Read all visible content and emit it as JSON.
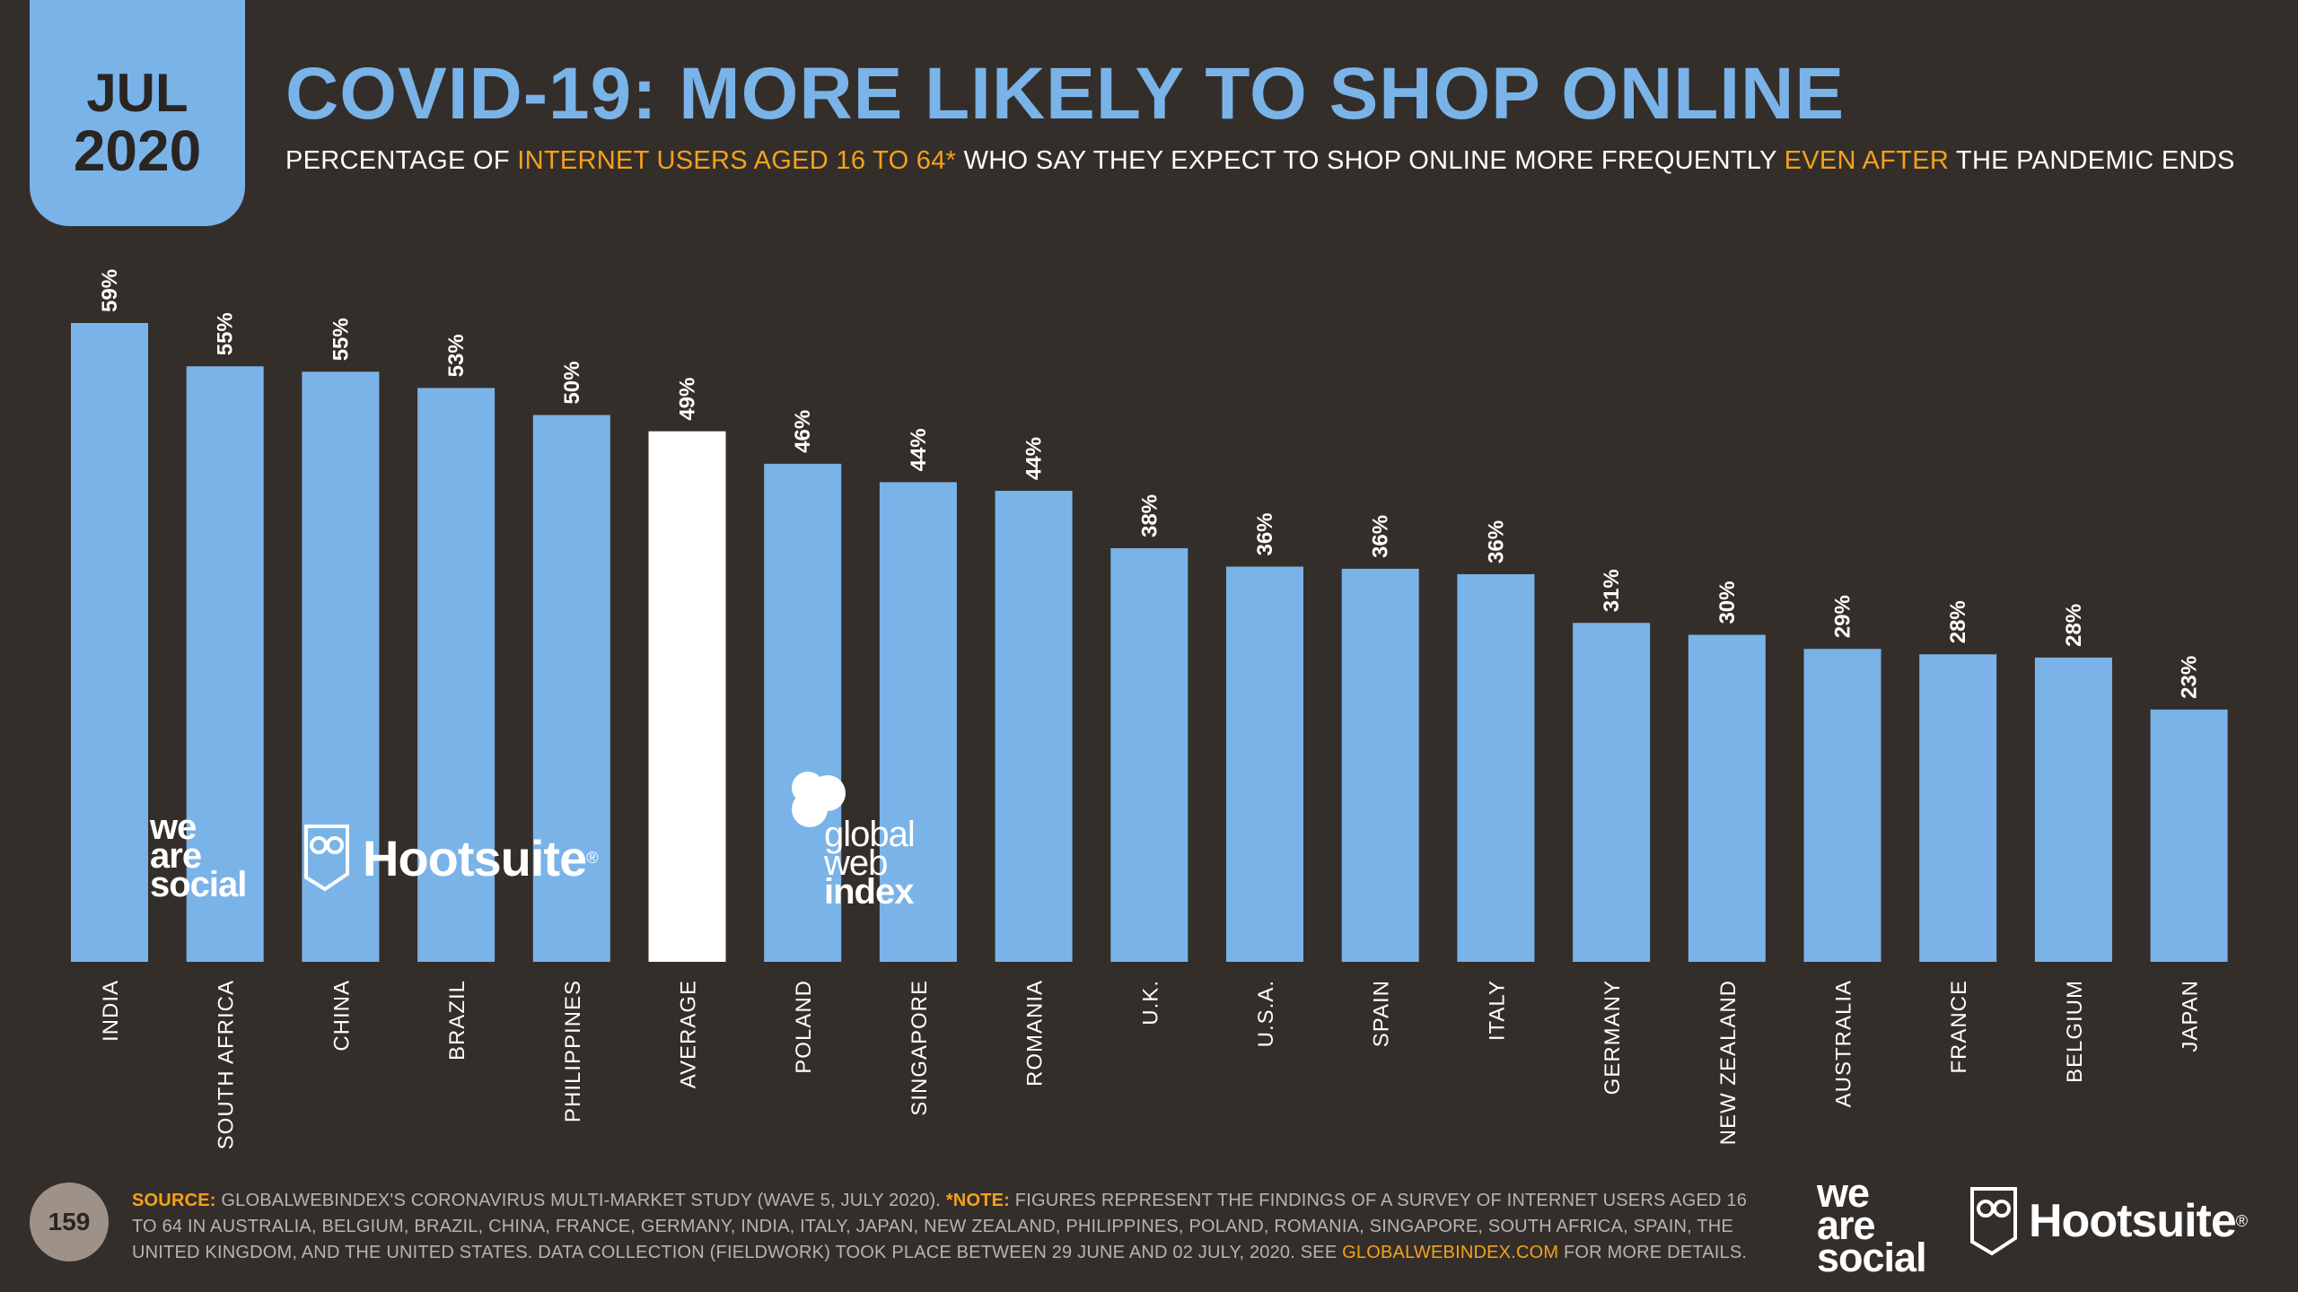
{
  "badge": {
    "month": "JUL",
    "year": "2020"
  },
  "title": "COVID-19: MORE LIKELY TO SHOP ONLINE",
  "subtitle": {
    "part1": "PERCENTAGE OF ",
    "highlight1": "INTERNET USERS AGED 16 TO 64*",
    "part2": " WHO SAY THEY EXPECT TO SHOP ONLINE MORE FREQUENTLY ",
    "highlight2": "EVEN AFTER",
    "part3": " THE PANDEMIC ENDS"
  },
  "colors": {
    "background": "#342e2a",
    "bar": "#7ab3e8",
    "highlight_bar": "#ffffff",
    "accent": "#f5a11c"
  },
  "chart_data": {
    "type": "bar",
    "categories": [
      "INDIA",
      "SOUTH AFRICA",
      "CHINA",
      "BRAZIL",
      "PHILIPPINES",
      "AVERAGE",
      "POLAND",
      "SINGAPORE",
      "ROMANIA",
      "U.K.",
      "U.S.A.",
      "SPAIN",
      "ITALY",
      "GERMANY",
      "NEW ZEALAND",
      "AUSTRALIA",
      "FRANCE",
      "BELGIUM",
      "JAPAN"
    ],
    "values": [
      59.0,
      55.0,
      54.5,
      53.0,
      50.5,
      49.0,
      46.0,
      44.3,
      43.5,
      38.2,
      36.5,
      36.3,
      35.8,
      31.3,
      30.2,
      28.9,
      28.4,
      28.1,
      23.3
    ],
    "labels": [
      "59%",
      "55%",
      "55%",
      "53%",
      "50%",
      "49%",
      "46%",
      "44%",
      "44%",
      "38%",
      "36%",
      "36%",
      "36%",
      "31%",
      "30%",
      "29%",
      "28%",
      "28%",
      "23%"
    ],
    "highlight_category": "AVERAGE",
    "ylim": [
      0,
      59
    ],
    "grid": false,
    "legend": "none"
  },
  "watermarks": {
    "we_are_social": [
      "we",
      "are",
      "social"
    ],
    "hootsuite": "Hootsuite",
    "gwi": [
      "global",
      "web",
      "index"
    ]
  },
  "footer": {
    "source_label": "SOURCE:",
    "source_text": " GLOBALWEBINDEX'S CORONAVIRUS MULTI-MARKET STUDY (WAVE 5, JULY 2020). ",
    "note_label": "*NOTE:",
    "note_text": " FIGURES REPRESENT THE FINDINGS OF A SURVEY OF INTERNET USERS AGED 16 TO 64 IN AUSTRALIA, BELGIUM, BRAZIL, CHINA, FRANCE, GERMANY, INDIA, ITALY, JAPAN, NEW ZEALAND, PHILIPPINES, POLAND, ROMANIA, SINGAPORE, SOUTH AFRICA, SPAIN, THE UNITED KINGDOM, AND THE UNITED STATES. DATA COLLECTION (FIELDWORK) TOOK PLACE BETWEEN 29 JUNE AND 02 JULY, 2020. SEE ",
    "link_text": "GLOBALWEBINDEX.COM",
    "end_text": " FOR MORE DETAILS."
  },
  "page_number": "159",
  "brands": {
    "we_are_social": [
      "we",
      "are",
      "social"
    ],
    "hootsuite": "Hootsuite"
  }
}
